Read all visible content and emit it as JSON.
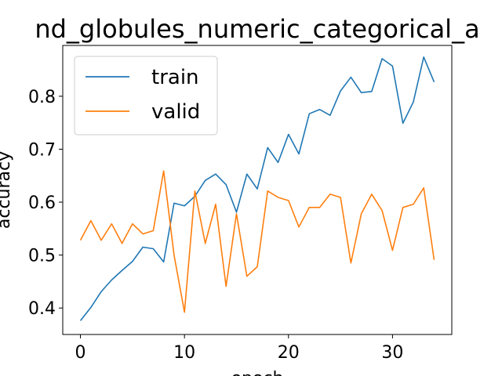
{
  "chart_data": {
    "type": "line",
    "title": "nd_globules_numeric_categorical_a",
    "xlabel": "epoch",
    "ylabel": "accuracy",
    "xlim": [
      -1.7,
      35.7
    ],
    "ylim": [
      0.35,
      0.896
    ],
    "xticks": [
      0,
      10,
      20,
      30
    ],
    "yticks": [
      0.4,
      0.5,
      0.6,
      0.7,
      0.8
    ],
    "legend_position": "upper-left",
    "grid": false,
    "series": [
      {
        "name": "train",
        "color": "#1f77b4",
        "x": [
          0,
          1,
          2,
          3,
          4,
          5,
          6,
          7,
          8,
          9,
          10,
          11,
          12,
          13,
          14,
          15,
          16,
          17,
          18,
          19,
          20,
          21,
          22,
          23,
          24,
          25,
          26,
          27,
          28,
          29,
          30,
          31,
          32,
          33,
          34
        ],
        "values": [
          0.376,
          0.401,
          0.431,
          0.453,
          0.471,
          0.488,
          0.515,
          0.512,
          0.487,
          0.598,
          0.593,
          0.611,
          0.641,
          0.653,
          0.633,
          0.581,
          0.653,
          0.625,
          0.703,
          0.675,
          0.728,
          0.691,
          0.767,
          0.775,
          0.764,
          0.81,
          0.836,
          0.807,
          0.809,
          0.871,
          0.857,
          0.749,
          0.789,
          0.874,
          0.827
        ]
      },
      {
        "name": "valid",
        "color": "#ff7f0e",
        "x": [
          0,
          1,
          2,
          3,
          4,
          5,
          6,
          7,
          8,
          9,
          10,
          11,
          12,
          13,
          14,
          15,
          16,
          17,
          18,
          19,
          20,
          21,
          22,
          23,
          24,
          25,
          26,
          27,
          28,
          29,
          30,
          31,
          32,
          33,
          34
        ],
        "values": [
          0.528,
          0.565,
          0.528,
          0.559,
          0.522,
          0.559,
          0.54,
          0.546,
          0.659,
          0.5,
          0.392,
          0.621,
          0.522,
          0.596,
          0.441,
          0.578,
          0.46,
          0.478,
          0.621,
          0.609,
          0.603,
          0.553,
          0.59,
          0.59,
          0.615,
          0.609,
          0.485,
          0.578,
          0.615,
          0.584,
          0.509,
          0.59,
          0.596,
          0.627,
          0.491
        ]
      }
    ]
  }
}
